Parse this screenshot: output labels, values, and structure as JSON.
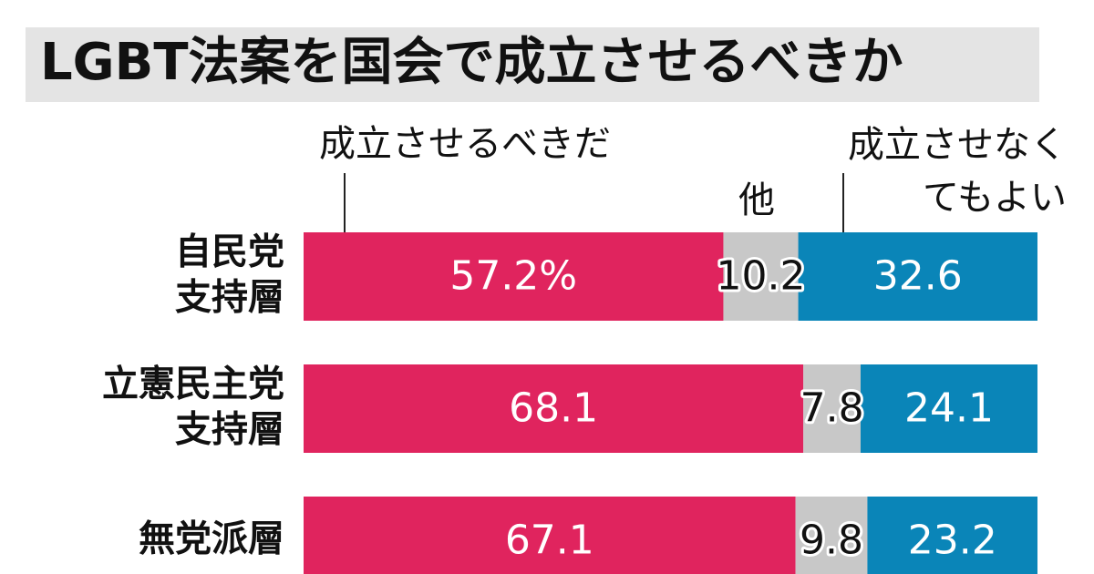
{
  "chart_data": {
    "type": "stacked-bar",
    "title": "LGBT法案を国会で成立させるべきか",
    "categories": [
      "自民党\n支持層",
      "立憲民主党\n支持層",
      "無党派層"
    ],
    "series": [
      {
        "name": "成立させるべきだ",
        "color": "#e0245e",
        "values": [
          57.2,
          68.1,
          67.1
        ],
        "value_labels": [
          "57.2%",
          "68.1",
          "67.1"
        ]
      },
      {
        "name": "他",
        "color": "#c8c8c8",
        "values": [
          10.2,
          7.8,
          9.8
        ]
      },
      {
        "name": "成立させなく\nてもよい",
        "color": "#0a85b8",
        "values": [
          32.6,
          24.1,
          23.2
        ]
      }
    ]
  }
}
